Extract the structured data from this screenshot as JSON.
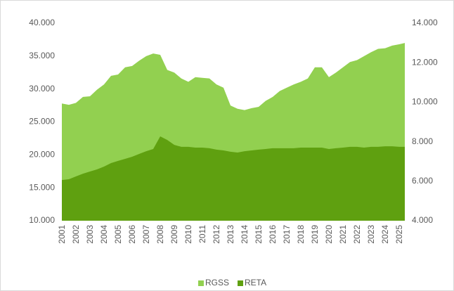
{
  "chart_data": {
    "type": "area",
    "x": [
      2001,
      2001.5,
      2002,
      2002.5,
      2003,
      2003.5,
      2004,
      2004.5,
      2005,
      2005.5,
      2006,
      2006.5,
      2007,
      2007.5,
      2008,
      2008.5,
      2009,
      2009.5,
      2010,
      2010.5,
      2011,
      2011.5,
      2012,
      2012.5,
      2013,
      2013.5,
      2014,
      2014.5,
      2015,
      2015.5,
      2016,
      2016.5,
      2017,
      2017.5,
      2018,
      2018.5,
      2019,
      2019.5,
      2020,
      2020.5,
      2021,
      2021.5,
      2022,
      2022.5,
      2023,
      2023.5,
      2024,
      2024.5,
      2025,
      2025.4
    ],
    "series": [
      {
        "name": "RGSS",
        "color": "#92d050",
        "axis": "y",
        "values": [
          27800,
          27600,
          27900,
          28800,
          28900,
          29900,
          30700,
          32000,
          32200,
          33300,
          33500,
          34300,
          35000,
          35400,
          35200,
          32900,
          32500,
          31600,
          31100,
          31800,
          31700,
          31600,
          30700,
          30200,
          27500,
          27000,
          26800,
          27100,
          27300,
          28200,
          28800,
          29700,
          30200,
          30700,
          31100,
          31600,
          33300,
          33300,
          31800,
          32500,
          33300,
          34100,
          34400,
          35000,
          35600,
          36100,
          36200,
          36600,
          36800,
          37000
        ]
      },
      {
        "name": "RETA",
        "color": "#5fa010",
        "axis": "y2",
        "values": [
          6060,
          6100,
          6240,
          6380,
          6490,
          6600,
          6740,
          6920,
          7030,
          7130,
          7240,
          7380,
          7520,
          7630,
          8270,
          8090,
          7840,
          7740,
          7740,
          7700,
          7700,
          7670,
          7600,
          7560,
          7490,
          7450,
          7520,
          7560,
          7600,
          7630,
          7670,
          7670,
          7670,
          7670,
          7700,
          7700,
          7700,
          7700,
          7630,
          7670,
          7700,
          7740,
          7740,
          7700,
          7740,
          7740,
          7770,
          7770,
          7740,
          7740
        ]
      }
    ],
    "xlim": [
      2001,
      2025.4
    ],
    "xticks": [
      2001,
      2002,
      2003,
      2004,
      2005,
      2006,
      2007,
      2008,
      2009,
      2010,
      2011,
      2012,
      2013,
      2014,
      2015,
      2016,
      2017,
      2018,
      2019,
      2020,
      2021,
      2022,
      2023,
      2024,
      2025
    ],
    "ylim": [
      10000,
      40000
    ],
    "yticks": [
      {
        "value": 10000,
        "label": "10.000"
      },
      {
        "value": 15000,
        "label": "15.000"
      },
      {
        "value": 20000,
        "label": "20.000"
      },
      {
        "value": 25000,
        "label": "25.000"
      },
      {
        "value": 30000,
        "label": "30.000"
      },
      {
        "value": 35000,
        "label": "35.000"
      },
      {
        "value": 40000,
        "label": "40.000"
      }
    ],
    "y2lim": [
      4000,
      14000
    ],
    "y2ticks": [
      {
        "value": 4000,
        "label": "4.000"
      },
      {
        "value": 6000,
        "label": "6.000"
      },
      {
        "value": 8000,
        "label": "8.000"
      },
      {
        "value": 10000,
        "label": "10.000"
      },
      {
        "value": 12000,
        "label": "12.000"
      },
      {
        "value": 14000,
        "label": "14.000"
      }
    ],
    "legend": "bottom"
  }
}
